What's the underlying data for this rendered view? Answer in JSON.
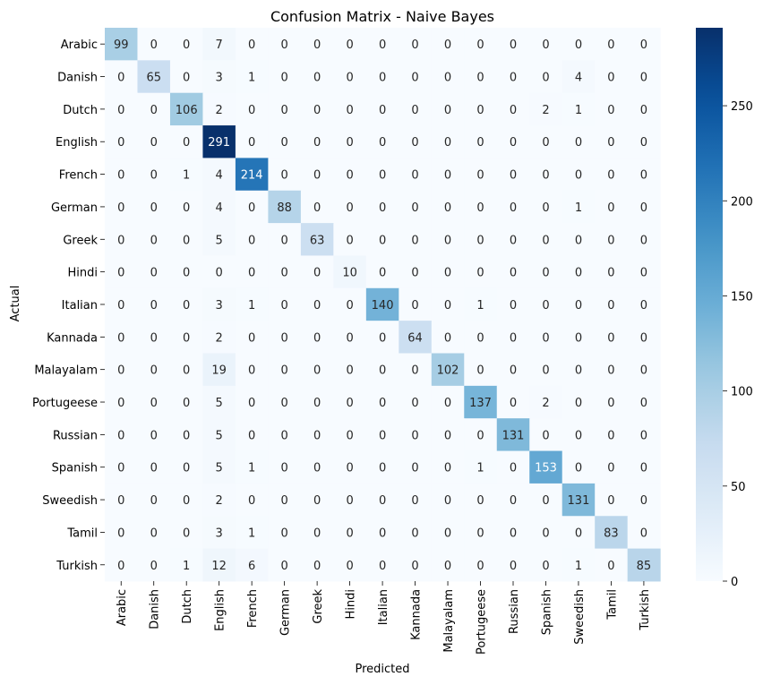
{
  "chart_data": {
    "type": "heatmap",
    "title": "Confusion Matrix - Naive Bayes",
    "xlabel": "Predicted",
    "ylabel": "Actual",
    "x_categories": [
      "Arabic",
      "Danish",
      "Dutch",
      "English",
      "French",
      "German",
      "Greek",
      "Hindi",
      "Italian",
      "Kannada",
      "Malayalam",
      "Portugeese",
      "Russian",
      "Spanish",
      "Sweedish",
      "Tamil",
      "Turkish"
    ],
    "y_categories": [
      "Arabic",
      "Danish",
      "Dutch",
      "English",
      "French",
      "German",
      "Greek",
      "Hindi",
      "Italian",
      "Kannada",
      "Malayalam",
      "Portugeese",
      "Russian",
      "Spanish",
      "Sweedish",
      "Tamil",
      "Turkish"
    ],
    "values": [
      [
        99,
        0,
        0,
        7,
        0,
        0,
        0,
        0,
        0,
        0,
        0,
        0,
        0,
        0,
        0,
        0,
        0
      ],
      [
        0,
        65,
        0,
        3,
        1,
        0,
        0,
        0,
        0,
        0,
        0,
        0,
        0,
        0,
        4,
        0,
        0
      ],
      [
        0,
        0,
        106,
        2,
        0,
        0,
        0,
        0,
        0,
        0,
        0,
        0,
        0,
        2,
        1,
        0,
        0
      ],
      [
        0,
        0,
        0,
        291,
        0,
        0,
        0,
        0,
        0,
        0,
        0,
        0,
        0,
        0,
        0,
        0,
        0
      ],
      [
        0,
        0,
        1,
        4,
        214,
        0,
        0,
        0,
        0,
        0,
        0,
        0,
        0,
        0,
        0,
        0,
        0
      ],
      [
        0,
        0,
        0,
        4,
        0,
        88,
        0,
        0,
        0,
        0,
        0,
        0,
        0,
        0,
        1,
        0,
        0
      ],
      [
        0,
        0,
        0,
        5,
        0,
        0,
        63,
        0,
        0,
        0,
        0,
        0,
        0,
        0,
        0,
        0,
        0
      ],
      [
        0,
        0,
        0,
        0,
        0,
        0,
        0,
        10,
        0,
        0,
        0,
        0,
        0,
        0,
        0,
        0,
        0
      ],
      [
        0,
        0,
        0,
        3,
        1,
        0,
        0,
        0,
        140,
        0,
        0,
        1,
        0,
        0,
        0,
        0,
        0
      ],
      [
        0,
        0,
        0,
        2,
        0,
        0,
        0,
        0,
        0,
        64,
        0,
        0,
        0,
        0,
        0,
        0,
        0
      ],
      [
        0,
        0,
        0,
        19,
        0,
        0,
        0,
        0,
        0,
        0,
        102,
        0,
        0,
        0,
        0,
        0,
        0
      ],
      [
        0,
        0,
        0,
        5,
        0,
        0,
        0,
        0,
        0,
        0,
        0,
        137,
        0,
        2,
        0,
        0,
        0
      ],
      [
        0,
        0,
        0,
        5,
        0,
        0,
        0,
        0,
        0,
        0,
        0,
        0,
        131,
        0,
        0,
        0,
        0
      ],
      [
        0,
        0,
        0,
        5,
        1,
        0,
        0,
        0,
        0,
        0,
        0,
        1,
        0,
        153,
        0,
        0,
        0
      ],
      [
        0,
        0,
        0,
        2,
        0,
        0,
        0,
        0,
        0,
        0,
        0,
        0,
        0,
        0,
        131,
        0,
        0
      ],
      [
        0,
        0,
        0,
        3,
        1,
        0,
        0,
        0,
        0,
        0,
        0,
        0,
        0,
        0,
        0,
        83,
        0
      ],
      [
        0,
        0,
        1,
        12,
        6,
        0,
        0,
        0,
        0,
        0,
        0,
        0,
        0,
        0,
        1,
        0,
        85
      ]
    ],
    "colorbar": {
      "colormap": "Blues",
      "range": [
        0,
        291
      ],
      "ticks": [
        0,
        50,
        100,
        150,
        200,
        250
      ]
    },
    "grid": false,
    "legend": "colorbar-right"
  }
}
